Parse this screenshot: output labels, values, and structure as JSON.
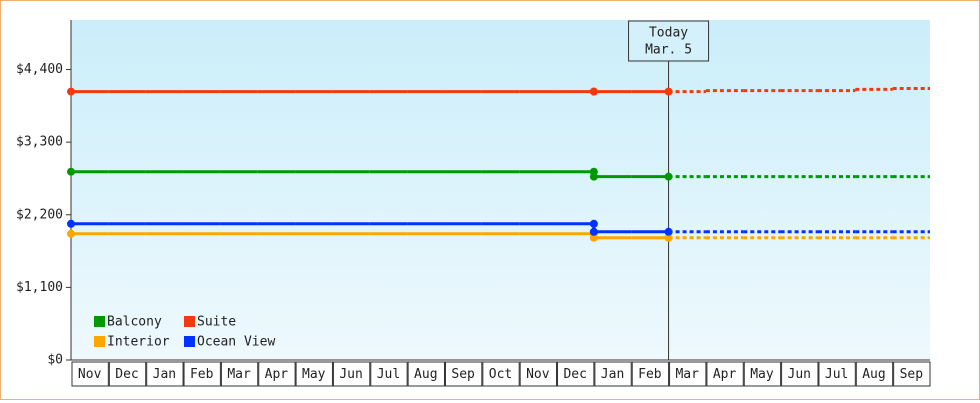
{
  "chart_data": {
    "type": "step-line",
    "categories": [
      "Nov",
      "Dec",
      "Jan",
      "Feb",
      "Mar",
      "Apr",
      "May",
      "Jun",
      "Jul",
      "Aug",
      "Sep",
      "Oct",
      "Nov",
      "Dec",
      "Jan",
      "Feb",
      "Mar",
      "Apr",
      "May",
      "Jun",
      "Jul",
      "Aug",
      "Sep"
    ],
    "series": [
      {
        "name": "Balcony",
        "color": "#009900",
        "values": [
          2852,
          2852,
          2852,
          2852,
          2852,
          2852,
          2852,
          2852,
          2852,
          2852,
          2852,
          2852,
          2852,
          2852,
          2777,
          2777,
          null,
          null,
          null,
          null,
          null,
          null,
          null
        ],
        "forecast": [
          null,
          null,
          null,
          null,
          null,
          null,
          null,
          null,
          null,
          null,
          null,
          null,
          null,
          null,
          null,
          null,
          2777,
          2777,
          2777,
          2777,
          2777,
          2777,
          2777
        ]
      },
      {
        "name": "Suite",
        "color": "#f23a0c",
        "values": [
          4066,
          4066,
          4066,
          4066,
          4066,
          4066,
          4066,
          4066,
          4066,
          4066,
          4066,
          4066,
          4066,
          4066,
          4066,
          4066,
          null,
          null,
          null,
          null,
          null,
          null,
          null
        ],
        "forecast": [
          null,
          null,
          null,
          null,
          null,
          null,
          null,
          null,
          null,
          null,
          null,
          null,
          null,
          null,
          null,
          null,
          4066,
          4080,
          4080,
          4080,
          4080,
          4100,
          4112
        ]
      },
      {
        "name": "Interior",
        "color": "#ffa500",
        "values": [
          1912,
          1912,
          1912,
          1912,
          1912,
          1912,
          1912,
          1912,
          1912,
          1912,
          1912,
          1912,
          1912,
          1912,
          1851,
          1851,
          null,
          null,
          null,
          null,
          null,
          null,
          null
        ],
        "forecast": [
          null,
          null,
          null,
          null,
          null,
          null,
          null,
          null,
          null,
          null,
          null,
          null,
          null,
          null,
          null,
          null,
          1851,
          1851,
          1851,
          1851,
          1851,
          1851,
          1851
        ]
      },
      {
        "name": "Ocean View",
        "color": "#0033ff",
        "values": [
          2063,
          2063,
          2063,
          2063,
          2063,
          2063,
          2063,
          2063,
          2063,
          2063,
          2063,
          2063,
          2063,
          2063,
          1942,
          1942,
          null,
          null,
          null,
          null,
          null,
          null,
          null
        ],
        "forecast": [
          null,
          null,
          null,
          null,
          null,
          null,
          null,
          null,
          null,
          null,
          null,
          null,
          null,
          null,
          null,
          null,
          1942,
          1942,
          1942,
          1942,
          1942,
          1942,
          1942
        ]
      }
    ],
    "annotation": {
      "title": "Today",
      "date": "Mar. 5"
    },
    "ylim": [
      0,
      5150
    ],
    "yticks": [
      {
        "value": 0,
        "label": "$0"
      },
      {
        "value": 1100,
        "label": "$1,100"
      },
      {
        "value": 2200,
        "label": "$2,200"
      },
      {
        "value": 3300,
        "label": "$3,300"
      },
      {
        "value": 4400,
        "label": "$4,400"
      }
    ],
    "legend": "lower-left"
  }
}
